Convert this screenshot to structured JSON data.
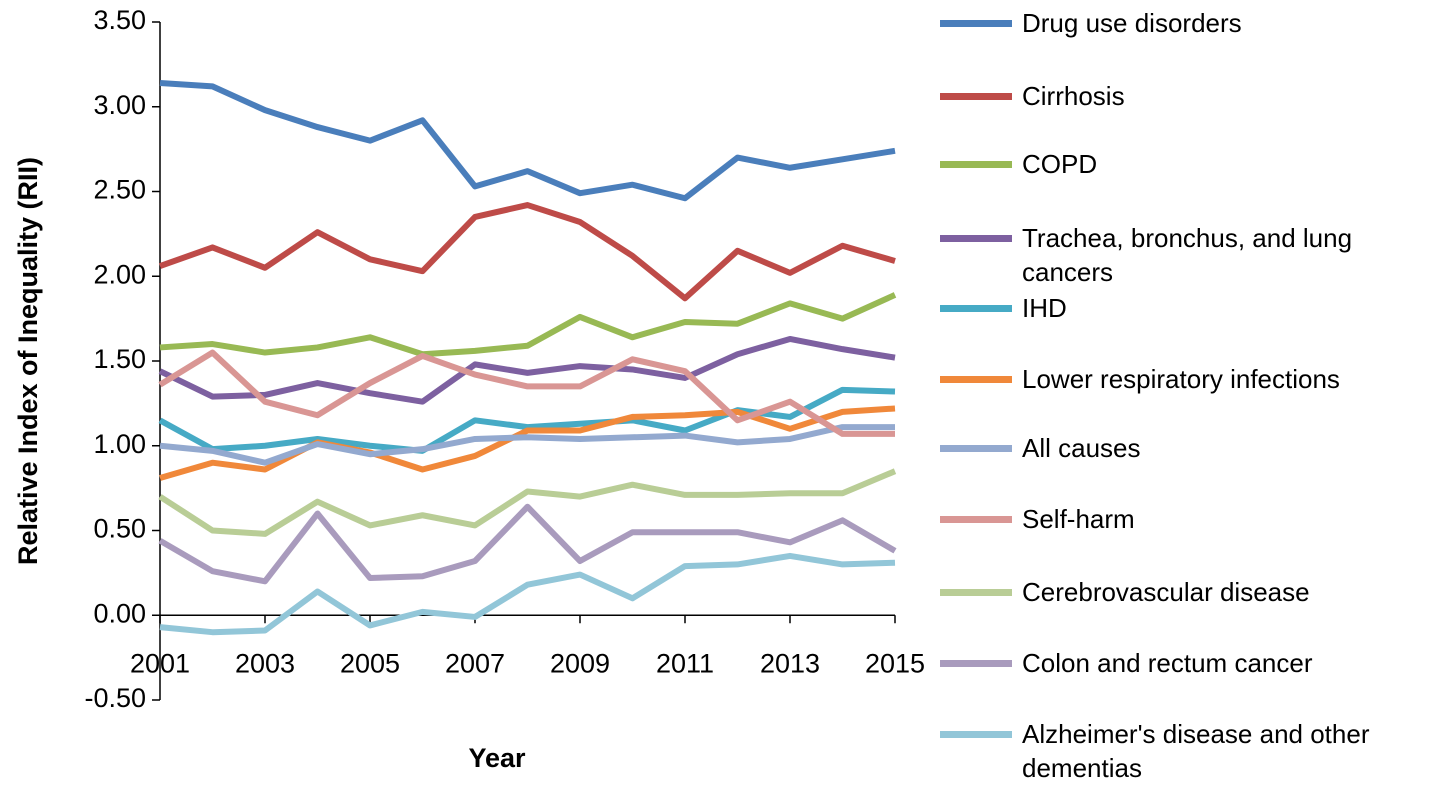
{
  "chart_data": {
    "type": "line",
    "x_label": "Year",
    "y_label": "Relative Index of Inequality (RII)",
    "x": [
      2001,
      2002,
      2003,
      2004,
      2005,
      2006,
      2007,
      2008,
      2009,
      2010,
      2011,
      2012,
      2013,
      2014,
      2015
    ],
    "xlim": [
      2001,
      2015
    ],
    "xticks": [
      2001,
      2003,
      2005,
      2007,
      2009,
      2011,
      2013,
      2015
    ],
    "ylim": [
      -0.5,
      3.5
    ],
    "yticks": [
      {
        "value": -0.5,
        "label": "-0.50"
      },
      {
        "value": 0,
        "label": "0.00"
      },
      {
        "value": 0.5,
        "label": "0.50"
      },
      {
        "value": 1,
        "label": "1.00"
      },
      {
        "value": 1.5,
        "label": "1.50"
      },
      {
        "value": 2,
        "label": "2.00"
      },
      {
        "value": 2.5,
        "label": "2.50"
      },
      {
        "value": 3,
        "label": "3.00"
      },
      {
        "value": 3.5,
        "label": "3.50"
      }
    ],
    "legend": "right",
    "series": [
      {
        "name": "Drug use disorders",
        "color": "#4a7ebb",
        "values": [
          3.14,
          3.12,
          2.98,
          2.88,
          2.8,
          2.92,
          2.53,
          2.62,
          2.49,
          2.54,
          2.46,
          2.7,
          2.64,
          2.69,
          2.74
        ]
      },
      {
        "name": "Cirrhosis",
        "color": "#be4b48",
        "values": [
          2.06,
          2.17,
          2.05,
          2.26,
          2.1,
          2.03,
          2.35,
          2.42,
          2.32,
          2.12,
          1.87,
          2.15,
          2.02,
          2.18,
          2.09
        ]
      },
      {
        "name": "COPD",
        "color": "#98b954",
        "values": [
          1.58,
          1.6,
          1.55,
          1.58,
          1.64,
          1.54,
          1.56,
          1.59,
          1.76,
          1.64,
          1.73,
          1.72,
          1.84,
          1.75,
          1.89
        ]
      },
      {
        "name": "Trachea, bronchus, and lung cancers",
        "color": "#7d60a0",
        "values": [
          1.44,
          1.29,
          1.3,
          1.37,
          1.31,
          1.26,
          1.48,
          1.43,
          1.47,
          1.45,
          1.4,
          1.54,
          1.63,
          1.57,
          1.52
        ]
      },
      {
        "name": "IHD",
        "color": "#46aac5",
        "values": [
          1.15,
          0.98,
          1.0,
          1.04,
          1.0,
          0.97,
          1.15,
          1.11,
          1.13,
          1.15,
          1.09,
          1.21,
          1.17,
          1.33,
          1.32
        ]
      },
      {
        "name": "Lower respiratory infections",
        "color": "#f0883a",
        "values": [
          0.81,
          0.9,
          0.86,
          1.02,
          0.96,
          0.86,
          0.94,
          1.09,
          1.09,
          1.17,
          1.18,
          1.2,
          1.1,
          1.2,
          1.22
        ]
      },
      {
        "name": "All causes",
        "color": "#93a9cf",
        "values": [
          1.0,
          0.97,
          0.9,
          1.01,
          0.95,
          0.98,
          1.04,
          1.05,
          1.04,
          1.05,
          1.06,
          1.02,
          1.04,
          1.11,
          1.11
        ]
      },
      {
        "name": "Self-harm",
        "color": "#d99694",
        "values": [
          1.36,
          1.55,
          1.26,
          1.18,
          1.37,
          1.53,
          1.42,
          1.35,
          1.35,
          1.51,
          1.44,
          1.15,
          1.26,
          1.07,
          1.07
        ]
      },
      {
        "name": "Cerebrovascular disease",
        "color": "#b9cd96",
        "values": [
          0.7,
          0.5,
          0.48,
          0.67,
          0.53,
          0.59,
          0.53,
          0.73,
          0.7,
          0.77,
          0.71,
          0.71,
          0.72,
          0.72,
          0.85
        ]
      },
      {
        "name": "Colon and rectum cancer",
        "color": "#a99bbd",
        "values": [
          0.44,
          0.26,
          0.2,
          0.6,
          0.22,
          0.23,
          0.32,
          0.64,
          0.32,
          0.49,
          0.49,
          0.49,
          0.43,
          0.56,
          0.38
        ]
      },
      {
        "name": "Alzheimer's disease and other dementias",
        "color": "#92c6d8",
        "values": [
          -0.07,
          -0.1,
          -0.09,
          0.14,
          -0.06,
          0.02,
          -0.01,
          0.18,
          0.24,
          0.1,
          0.29,
          0.3,
          0.35,
          0.3,
          0.31
        ]
      }
    ]
  }
}
